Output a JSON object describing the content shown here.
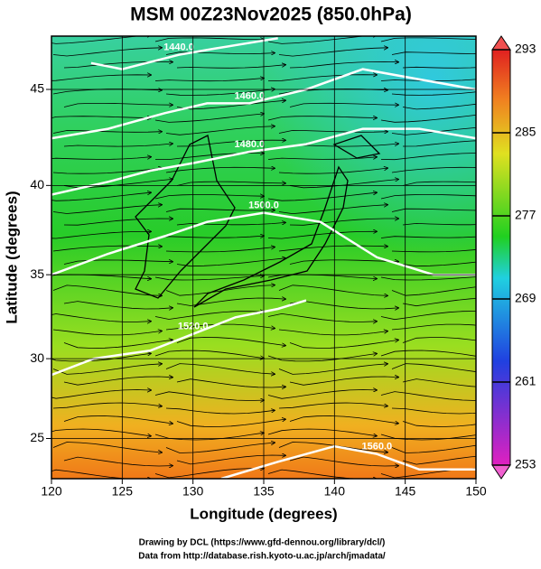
{
  "chart_data": {
    "type": "map",
    "title": "MSM 00Z23Nov2025 (850.0hPa)",
    "x_label": "Longitude (degrees)",
    "y_label": "Latitude  (degrees)",
    "xlim": [
      120,
      150
    ],
    "xticks": [
      120,
      125,
      130,
      135,
      140,
      145,
      150
    ],
    "ylim": [
      22.4,
      47.6
    ],
    "yticks": [
      25,
      30,
      35,
      40,
      45
    ],
    "grid": true,
    "colorbar": {
      "lim": [
        253,
        293
      ],
      "ticks": [
        253,
        261,
        269,
        277,
        285,
        293
      ]
    },
    "contours": [
      {
        "label": "1440.0",
        "lon": [
          122.8,
          125,
          129,
          131.5,
          136
        ],
        "lat": [
          46.3,
          46.0,
          46.7,
          47.0,
          47.5
        ]
      },
      {
        "label": "1460.0",
        "lon": [
          120,
          124,
          128,
          131,
          134,
          138,
          142,
          146,
          150
        ],
        "lat": [
          42.5,
          43.0,
          43.8,
          44.3,
          44.3,
          45.0,
          46.0,
          45.5,
          45.0
        ]
      },
      {
        "label": "1480.0",
        "lon": [
          120,
          124,
          127,
          130,
          134,
          138,
          142,
          146,
          150
        ],
        "lat": [
          39.5,
          40.2,
          40.8,
          41.2,
          41.8,
          42.2,
          43.0,
          43.0,
          42.5
        ]
      },
      {
        "label": "1500.0",
        "lon": [
          120,
          124,
          128,
          131,
          135,
          139,
          143,
          147,
          150
        ],
        "lat": [
          35.0,
          36.2,
          37.2,
          38.0,
          38.5,
          38.0,
          36.0,
          35.0,
          35.0
        ]
      },
      {
        "label": "1520.0",
        "lon": [
          120,
          123,
          127,
          130,
          133,
          136,
          138
        ],
        "lat": [
          29.0,
          30.0,
          30.5,
          31.5,
          32.5,
          33.0,
          33.5
        ]
      },
      {
        "label": "1560.0",
        "lon": [
          132,
          136,
          140,
          143,
          146,
          150
        ],
        "lat": [
          22.4,
          23.5,
          24.5,
          24.0,
          23.0,
          23.0
        ]
      }
    ],
    "credits": [
      "Drawing by DCL (https://www.gfd-dennou.org/library/dcl/)",
      "Data from http://database.rish.kyoto-u.ac.jp/arch/jmadata/"
    ]
  }
}
